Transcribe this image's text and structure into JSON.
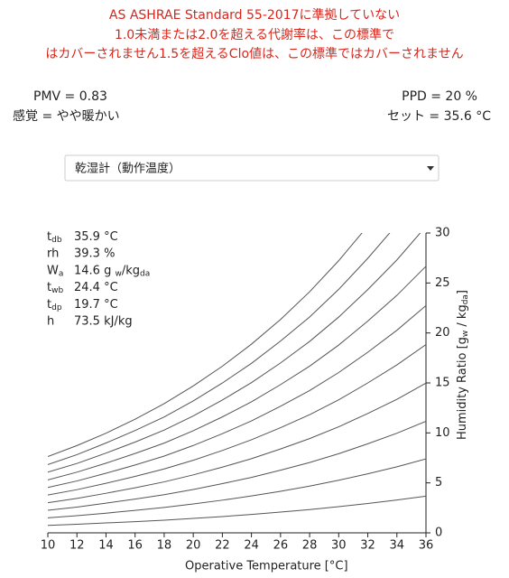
{
  "warning": [
    "AS ASHRAE Standard 55-2017に準拠していない",
    "1.0未満または2.0を超える代謝率は、この標準で",
    "はカバーされません1.5を超えるClo値は、この標準ではカバーされません"
  ],
  "results": {
    "pmv": "PMV = 0.83",
    "sensation": "感覚 = やや暖かい",
    "ppd": "PPD = 20 %",
    "set": "セット = 35.6 °C"
  },
  "dropdown": {
    "selected": "乾湿計（動作温度）"
  },
  "readings": [
    {
      "label": [
        {
          "text": "t"
        },
        {
          "text": "db",
          "sub": true
        }
      ],
      "value": [
        {
          "text": "35.9 °C"
        }
      ]
    },
    {
      "label": [
        {
          "text": "rh"
        }
      ],
      "value": [
        {
          "text": "39.3 %"
        }
      ]
    },
    {
      "label": [
        {
          "text": "W"
        },
        {
          "text": "a",
          "sub": true
        }
      ],
      "value": [
        {
          "text": "14.6 g "
        },
        {
          "text": "w",
          "sub": true
        },
        {
          "text": "/kg"
        },
        {
          "text": "da",
          "sub": true
        }
      ]
    },
    {
      "label": [
        {
          "text": "t"
        },
        {
          "text": "wb",
          "sub": true
        }
      ],
      "value": [
        {
          "text": "24.4 °C"
        }
      ]
    },
    {
      "label": [
        {
          "text": "t"
        },
        {
          "text": "dp",
          "sub": true
        }
      ],
      "value": [
        {
          "text": "19.7 °C"
        }
      ]
    },
    {
      "label": [
        {
          "text": "h"
        }
      ],
      "value": [
        {
          "text": "73.5 kJ/kg"
        }
      ]
    }
  ],
  "chart_data": {
    "type": "line",
    "x_label": "Operative Temperature [°C]",
    "y_label": [
      {
        "text": "Humidity Ratio [g"
      },
      {
        "text": "w",
        "sub": true
      },
      {
        "text": " / kg"
      },
      {
        "text": "da",
        "sub": true
      },
      {
        "text": "]"
      }
    ],
    "x": [
      10,
      12,
      14,
      16,
      18,
      20,
      22,
      24,
      26,
      28,
      30,
      32,
      34,
      36
    ],
    "xlim": [
      10,
      36
    ],
    "xticks": [
      10,
      12,
      14,
      16,
      18,
      20,
      22,
      24,
      26,
      28,
      30,
      32,
      34,
      36
    ],
    "ylim": [
      0,
      30
    ],
    "yticks": [
      0,
      5,
      10,
      15,
      20,
      25,
      30
    ],
    "y_axis_side": "right",
    "series": [
      {
        "color": "#555555",
        "values": [
          0.75,
          0.86,
          0.99,
          1.12,
          1.27,
          1.44,
          1.63,
          1.84,
          2.08,
          2.33,
          2.62,
          2.94,
          3.29,
          3.67
        ]
      },
      {
        "color": "#555555",
        "values": [
          1.5,
          1.72,
          1.97,
          2.25,
          2.54,
          2.89,
          3.27,
          3.69,
          4.16,
          4.68,
          5.26,
          5.91,
          6.61,
          7.4
        ]
      },
      {
        "color": "#555555",
        "values": [
          2.26,
          2.58,
          2.97,
          3.38,
          3.82,
          4.34,
          4.92,
          5.55,
          6.27,
          7.04,
          7.92,
          8.91,
          9.97,
          11.16
        ]
      },
      {
        "color": "#555555",
        "values": [
          3.02,
          3.45,
          3.96,
          4.51,
          5.1,
          5.8,
          6.57,
          7.42,
          8.39,
          9.43,
          10.61,
          11.94,
          13.36,
          14.98
        ]
      },
      {
        "color": "#555555",
        "values": [
          3.78,
          4.32,
          4.96,
          5.65,
          6.39,
          7.26,
          8.24,
          9.31,
          10.52,
          11.82,
          13.31,
          15.0,
          16.8,
          18.84
        ]
      },
      {
        "color": "#555555",
        "values": [
          4.54,
          5.19,
          5.96,
          6.79,
          7.68,
          8.74,
          9.92,
          11.2,
          12.67,
          14.24,
          16.04,
          18.07,
          20.27,
          22.74
        ]
      },
      {
        "color": "#555555",
        "values": [
          5.3,
          6.07,
          6.97,
          7.94,
          8.98,
          10.22,
          11.6,
          13.11,
          14.83,
          16.68,
          18.79,
          21.19,
          23.76,
          26.67
        ]
      },
      {
        "color": "#555555",
        "values": [
          6.07,
          6.94,
          7.98,
          9.08,
          10.28,
          11.7,
          13.29,
          15.03,
          17.0,
          19.15,
          21.59,
          24.34,
          27.3,
          30.67
        ]
      },
      {
        "color": "#555555",
        "values": [
          6.83,
          7.82,
          8.99,
          10.24,
          11.59,
          13.2,
          14.99,
          16.96,
          19.19,
          21.6,
          24.36,
          27.47,
          30.84,
          null
        ]
      },
      {
        "color": "#555555",
        "values": [
          7.63,
          8.73,
          9.97,
          11.37,
          12.93,
          14.7,
          16.67,
          18.88,
          21.35,
          24.12,
          27.23,
          30.7,
          null,
          null
        ]
      }
    ]
  }
}
